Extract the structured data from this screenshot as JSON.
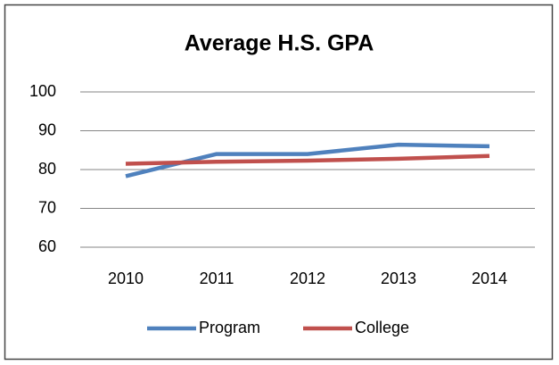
{
  "chart_data": {
    "type": "line",
    "title": "Average H.S. GPA",
    "categories": [
      "2010",
      "2011",
      "2012",
      "2013",
      "2014"
    ],
    "series": [
      {
        "name": "Program",
        "color": "#4f81bd",
        "values": [
          78.3,
          84,
          84,
          86.4,
          86
        ]
      },
      {
        "name": "College",
        "color": "#c0504d",
        "values": [
          81.5,
          82,
          82.3,
          82.8,
          83.5
        ]
      }
    ],
    "ylim": [
      60,
      100
    ],
    "yticks": [
      60,
      70,
      80,
      90,
      100
    ],
    "grid": true,
    "legend": "bottom"
  }
}
